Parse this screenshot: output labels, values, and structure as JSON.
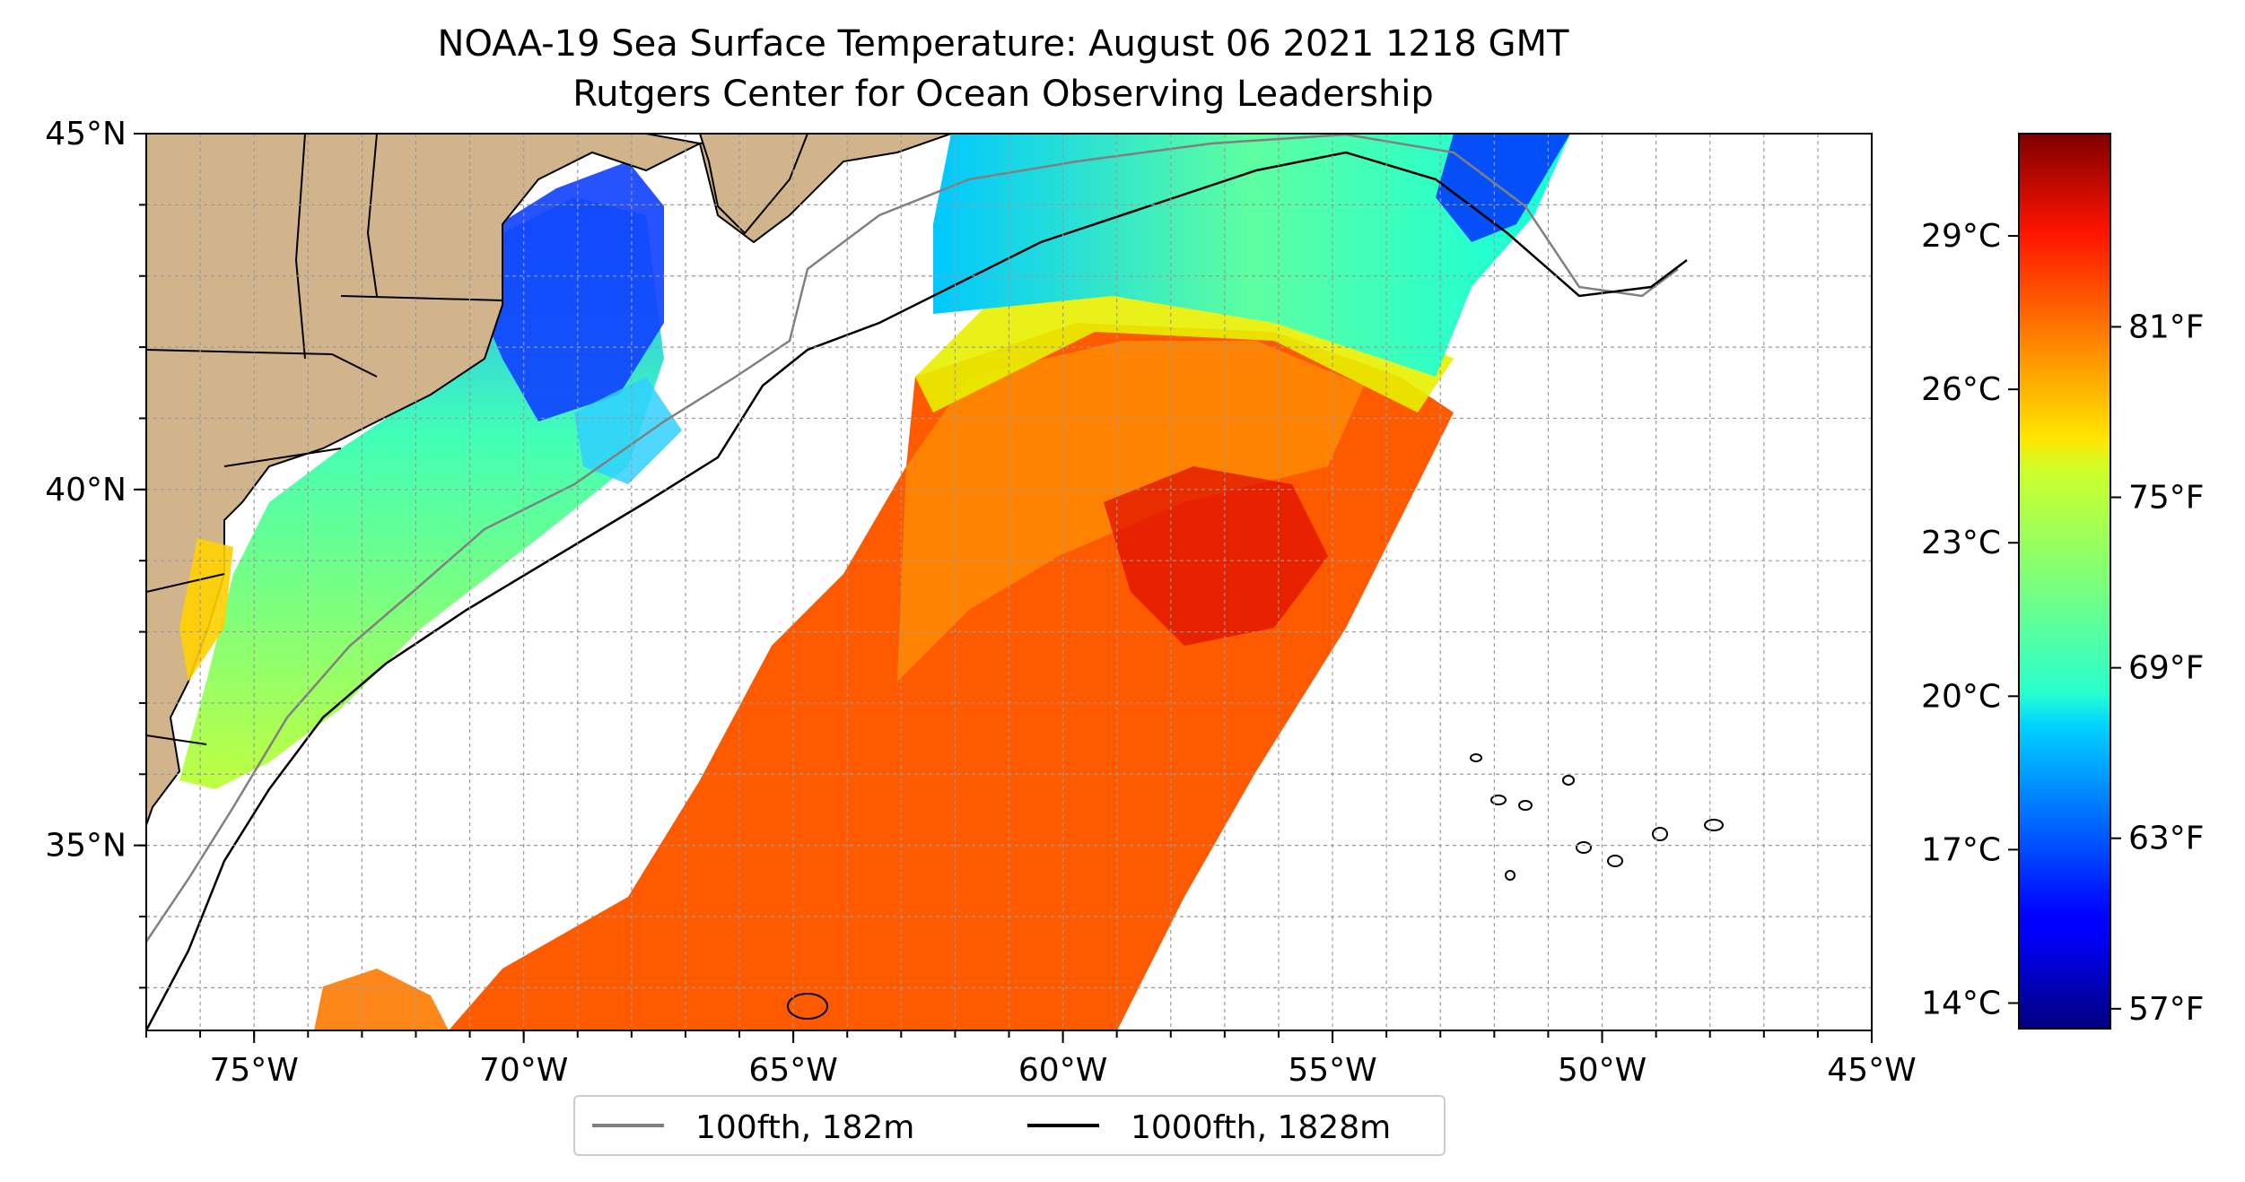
{
  "title": {
    "line1": "NOAA-19 Sea Surface Temperature: August 06 2021 1218 GMT",
    "line2": "Rutgers Center for Ocean Observing Leadership"
  },
  "map": {
    "lon_range": [
      -77,
      -45
    ],
    "lat_range": [
      32.4,
      45
    ],
    "lon_ticks": [
      {
        "value": -75,
        "label": "75°W"
      },
      {
        "value": -70,
        "label": "70°W"
      },
      {
        "value": -65,
        "label": "65°W"
      },
      {
        "value": -60,
        "label": "60°W"
      },
      {
        "value": -55,
        "label": "55°W"
      },
      {
        "value": -50,
        "label": "50°W"
      },
      {
        "value": -45,
        "label": "45°W"
      }
    ],
    "lat_ticks": [
      {
        "value": 35,
        "label": "35°N"
      },
      {
        "value": 40,
        "label": "40°N"
      },
      {
        "value": 45,
        "label": "45°N"
      }
    ],
    "grid": true,
    "land_color": "#d2b48c",
    "ocean_color": "#ffffff"
  },
  "legend": {
    "placement": "bottom-center",
    "items": [
      {
        "label": "100fth, 182m",
        "color": "#808080"
      },
      {
        "label": "1000fth, 1828m",
        "color": "#000000"
      }
    ]
  },
  "colorbar": {
    "colormap": "jet",
    "range_c": [
      13.5,
      31
    ],
    "celsius_ticks": [
      {
        "value": 14,
        "label": "14°C"
      },
      {
        "value": 17,
        "label": "17°C"
      },
      {
        "value": 20,
        "label": "20°C"
      },
      {
        "value": 23,
        "label": "23°C"
      },
      {
        "value": 26,
        "label": "26°C"
      },
      {
        "value": 29,
        "label": "29°C"
      }
    ],
    "fahrenheit_ticks": [
      {
        "value": 57,
        "label": "57°F"
      },
      {
        "value": 63,
        "label": "63°F"
      },
      {
        "value": 69,
        "label": "69°F"
      },
      {
        "value": 75,
        "label": "75°F"
      },
      {
        "value": 81,
        "label": "81°F"
      }
    ]
  }
}
